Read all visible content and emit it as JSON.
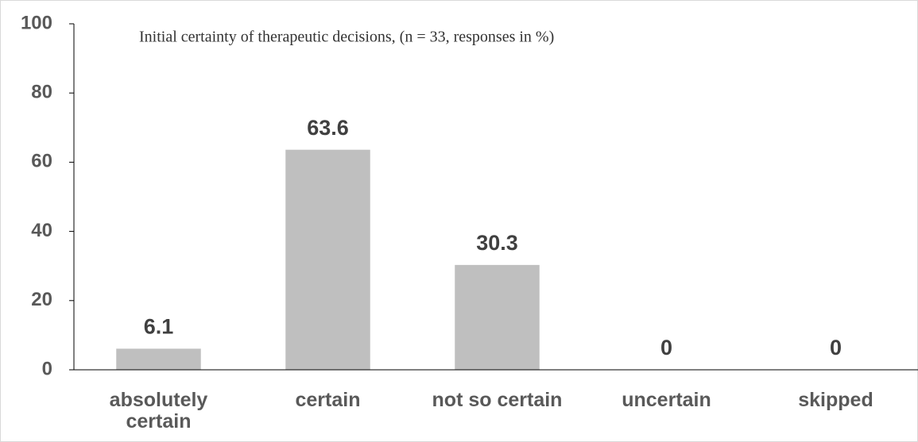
{
  "chart_data": {
    "type": "bar",
    "title": "Initial certainty of therapeutic decisions, (n = 33, responses in %)",
    "categories": [
      "absolutely certain",
      "certain",
      "not so certain",
      "uncertain",
      "skipped"
    ],
    "values": [
      6.1,
      63.6,
      30.3,
      0,
      0
    ],
    "color": "#bfbfbf",
    "ylim": [
      0,
      100
    ],
    "yticks": [
      0,
      20,
      40,
      60,
      80,
      100
    ],
    "grid": false
  }
}
